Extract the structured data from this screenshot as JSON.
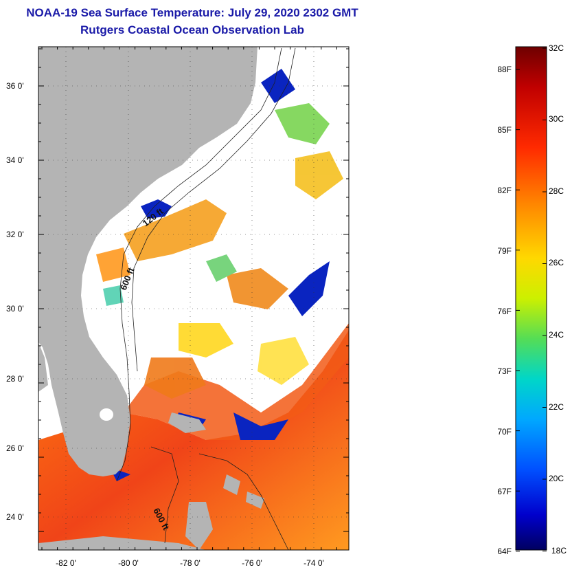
{
  "title": {
    "line1": "NOAA-19 Sea Surface Temperature:  July 29, 2020 2302 GMT",
    "line2": "Rutgers Coastal Ocean Observation Lab"
  },
  "map": {
    "lat_ticks": [
      "36 0'",
      "34 0'",
      "32 0'",
      "30 0'",
      "28 0'",
      "26 0'",
      "24 0'"
    ],
    "lon_ticks": [
      "-82 0'",
      "-80 0'",
      "-78 0'",
      "-76 0'",
      "-74 0'"
    ],
    "contour_labels": [
      "120 ft",
      "600 ft",
      "600 ft"
    ],
    "colors": {
      "land": "#b4b4b4",
      "cloud": "#ffffff",
      "warm": "#e8361a",
      "cool": "#0a1fb8"
    }
  },
  "colorbar": {
    "fahrenheit": [
      "88F",
      "85F",
      "82F",
      "79F",
      "76F",
      "73F",
      "70F",
      "67F",
      "64F"
    ],
    "celsius": [
      "32C",
      "30C",
      "28C",
      "26C",
      "24C",
      "22C",
      "20C",
      "18C"
    ],
    "range_c": [
      18,
      32
    ],
    "palette": [
      "#7a0000",
      "#d40000",
      "#ff3a00",
      "#ff8a00",
      "#ffd400",
      "#c8f000",
      "#50e060",
      "#00d8d0",
      "#00a0ff",
      "#0050ff",
      "#0000c8",
      "#00006e"
    ]
  }
}
